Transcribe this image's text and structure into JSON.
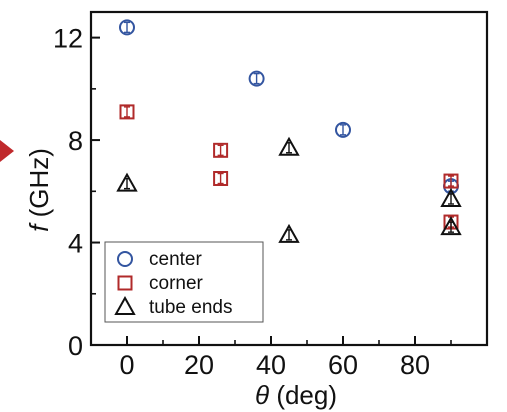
{
  "chart_data": {
    "type": "scatter",
    "xlabel": {
      "symbol": "θ",
      "unit": " (deg)"
    },
    "ylabel": {
      "symbol": "f",
      "unit": " (GHz)"
    },
    "xlim": [
      -10,
      100
    ],
    "ylim": [
      0,
      13
    ],
    "xticks": [
      0,
      20,
      40,
      60,
      80
    ],
    "yticks": [
      0,
      4,
      8,
      12
    ],
    "grid": false,
    "legend": "bottom-left",
    "series": [
      {
        "name": "center",
        "marker": "circle",
        "color": "#3355a0",
        "points": [
          {
            "x": 0,
            "y": 12.4
          },
          {
            "x": 36,
            "y": 10.4
          },
          {
            "x": 60,
            "y": 8.4
          },
          {
            "x": 90,
            "y": 6.2
          }
        ]
      },
      {
        "name": "corner",
        "marker": "square",
        "color": "#b02a2a",
        "points": [
          {
            "x": 0,
            "y": 9.1
          },
          {
            "x": 26,
            "y": 7.6
          },
          {
            "x": 26,
            "y": 6.5
          },
          {
            "x": 90,
            "y": 6.4
          },
          {
            "x": 90,
            "y": 4.8
          }
        ]
      },
      {
        "name": "tube ends",
        "marker": "triangle",
        "color": "#111111",
        "points": [
          {
            "x": 0,
            "y": 6.3
          },
          {
            "x": 45,
            "y": 7.7
          },
          {
            "x": 45,
            "y": 4.3
          },
          {
            "x": 90,
            "y": 5.7
          },
          {
            "x": 90,
            "y": 4.6
          }
        ]
      }
    ],
    "arrow_color": "#c0292c"
  }
}
